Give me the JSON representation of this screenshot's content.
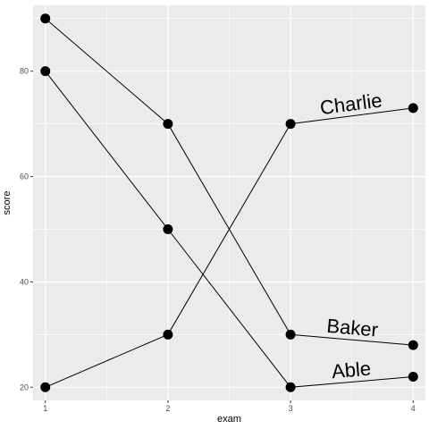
{
  "chart_data": {
    "type": "line",
    "title": "",
    "xlabel": "exam",
    "ylabel": "score",
    "x": [
      1,
      2,
      3,
      4
    ],
    "xlim": [
      0.9,
      4.1
    ],
    "ylim": [
      17.5,
      92.5
    ],
    "x_ticks": [
      1,
      2,
      3,
      4
    ],
    "y_ticks": [
      20,
      40,
      60,
      80
    ],
    "grid": true,
    "legend": "none",
    "series": [
      {
        "name": "Able",
        "values": [
          80,
          50,
          20,
          22
        ]
      },
      {
        "name": "Baker",
        "values": [
          90,
          70,
          30,
          28
        ]
      },
      {
        "name": "Charlie",
        "values": [
          20,
          30,
          70,
          73
        ]
      }
    ],
    "colors": {
      "panel": "#ebebeb",
      "grid": "#ffffff",
      "line": "#000000",
      "point": "#000000"
    }
  }
}
